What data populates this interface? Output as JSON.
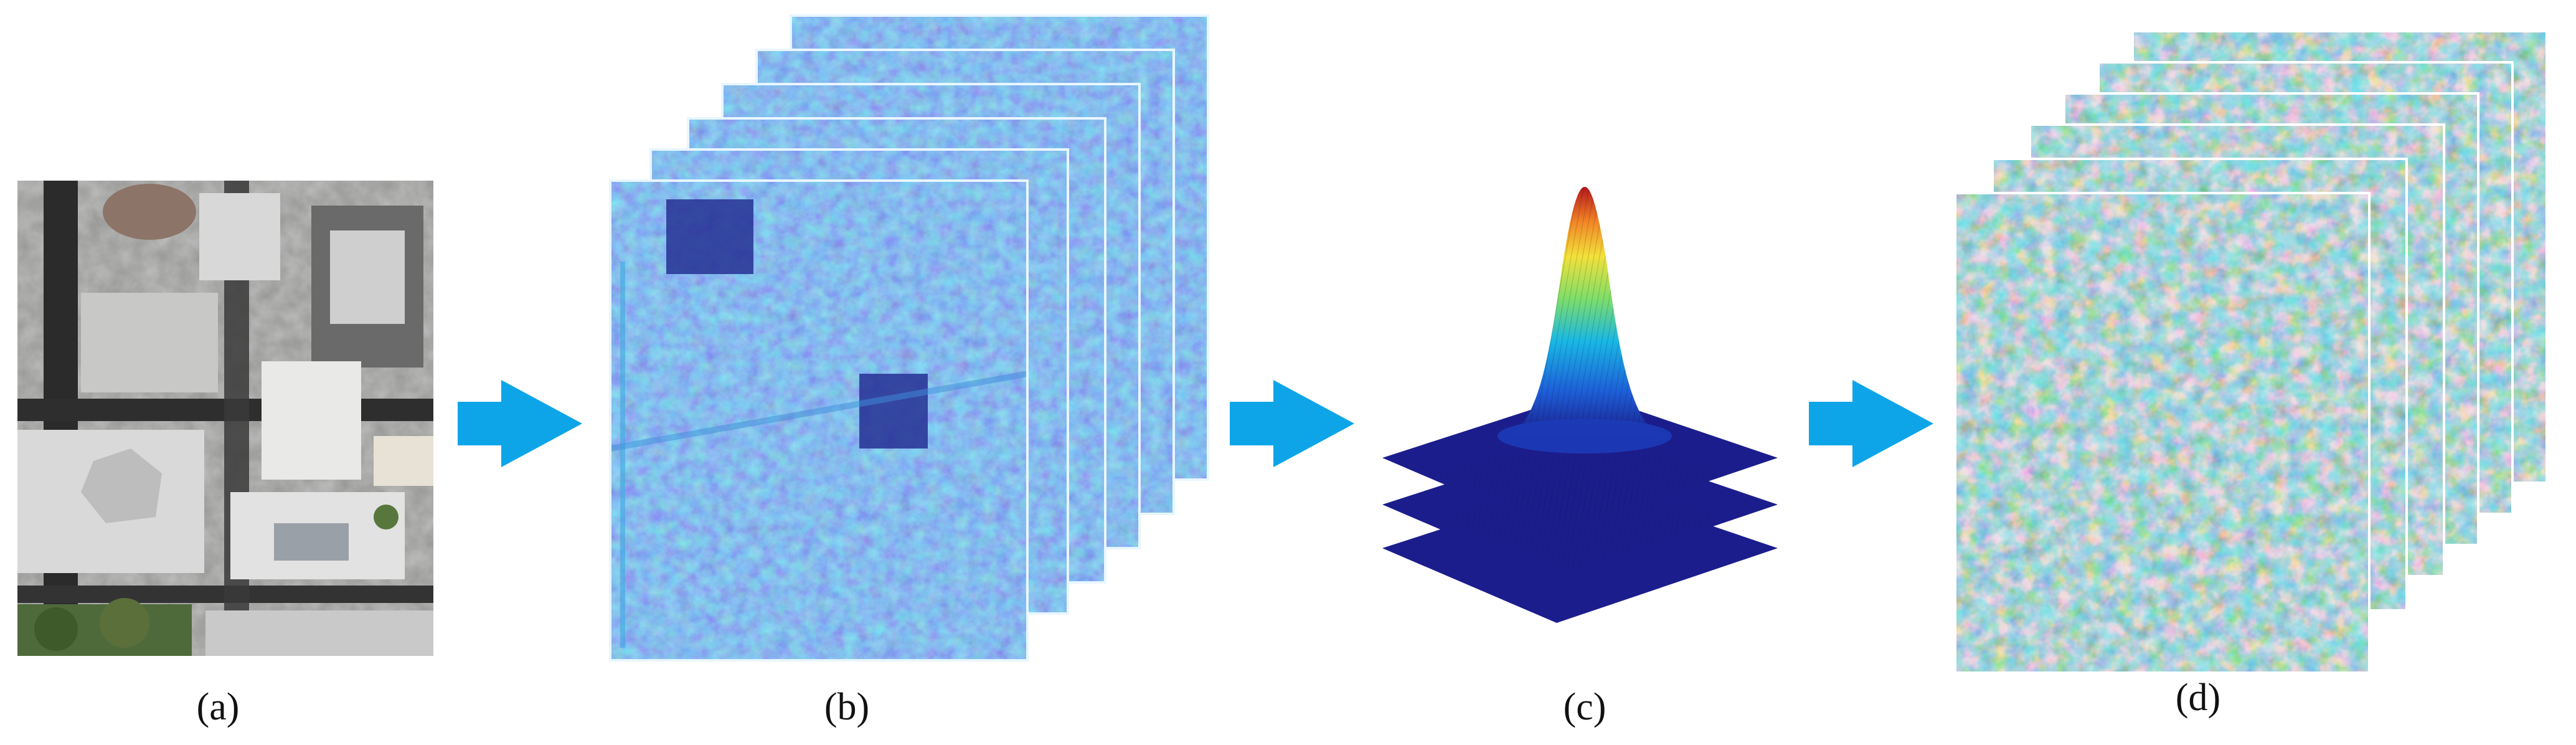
{
  "panels": [
    {
      "id": "a",
      "caption": "(a)",
      "content": "aerial-image"
    },
    {
      "id": "b",
      "caption": "(b)",
      "content": "feature-map-stack"
    },
    {
      "id": "c",
      "caption": "(c)",
      "content": "gaussian-kernel-layers"
    },
    {
      "id": "d",
      "caption": "(d)",
      "content": "filtered-feature-map-stack"
    }
  ],
  "arrows": [
    {
      "from": "a",
      "to": "b"
    },
    {
      "from": "b",
      "to": "c"
    },
    {
      "from": "c",
      "to": "d"
    }
  ],
  "colors": {
    "arrow": "#0ea5e8",
    "feature_dark": "#2f3aa8",
    "feature_mid": "#3a74d6",
    "feature_light": "#46b4e4",
    "filtered_blue": "#2b73cc",
    "filtered_yellow": "#f0c23c",
    "plane": "#1c1d8c",
    "gauss_peak": "#b3161b"
  },
  "layout_hints": {
    "stack_b_layers": 6,
    "stack_d_layers": 6,
    "gaussian_planes": 3
  }
}
